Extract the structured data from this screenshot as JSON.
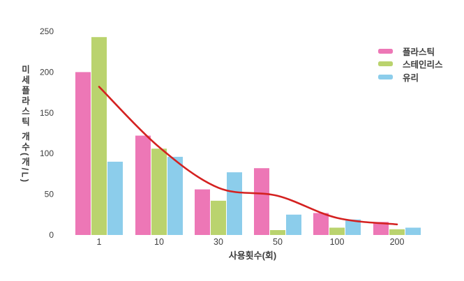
{
  "chart_data": {
    "type": "bar",
    "title": "",
    "xlabel": "사용횟수(회)",
    "ylabel": "미세플라스틱 개수(개/L)",
    "categories": [
      "1",
      "10",
      "30",
      "50",
      "100",
      "200"
    ],
    "yticks": [
      0,
      50,
      100,
      150,
      200,
      250
    ],
    "ylim": [
      0,
      250
    ],
    "grid": false,
    "axis_lines": false,
    "legend_position": "upper-right",
    "series": [
      {
        "name": "플라스틱",
        "color": "#ed77b6",
        "values": [
          200,
          122,
          56,
          82,
          27,
          16
        ]
      },
      {
        "name": "스테인리스",
        "color": "#bad36e",
        "values": [
          243,
          106,
          42,
          6,
          9,
          7
        ]
      },
      {
        "name": "유리",
        "color": "#8ccdeb",
        "values": [
          90,
          96,
          77,
          25,
          19,
          9
        ]
      }
    ],
    "trend_line": {
      "color": "#d42120",
      "values": [
        182,
        108,
        58,
        48,
        21,
        13
      ]
    }
  },
  "colors": {
    "text": "#3d3d3d",
    "background": "#ffffff"
  }
}
